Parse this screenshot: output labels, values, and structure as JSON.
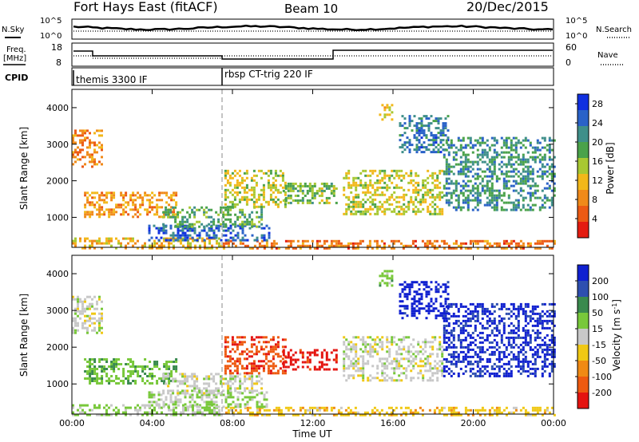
{
  "header": {
    "title": "Fort Hays East (fitACF)",
    "beam": "Beam 10",
    "date": "20/Dec/2015"
  },
  "top_panels": {
    "nsky_label": "N.Sky",
    "nsky_ticks": [
      "10^5",
      "10^0"
    ],
    "nsearch_label": "N.Search",
    "nsearch_ticks": [
      "10^5",
      "10^0"
    ],
    "freq_label_1": "Freq.",
    "freq_label_2": "[MHz]",
    "freq_ticks": [
      "18",
      "8"
    ],
    "nave_label": "Nave",
    "nave_ticks": [
      "60",
      "0"
    ],
    "cpid_label": "CPID",
    "cpid_segments": [
      "themis 3300 IF",
      "rbsp CT-trig 220 IF"
    ]
  },
  "chart_data": [
    {
      "type": "heatmap",
      "title": "",
      "xlabel": "",
      "ylabel": "Slant Range [km]",
      "x_ticks": [
        "00:00",
        "04:00",
        "08:00",
        "12:00",
        "16:00",
        "20:00",
        "00:00"
      ],
      "xlim_hours": [
        0,
        24
      ],
      "ylim_km": [
        180,
        4500
      ],
      "y_ticks": [
        1000,
        2000,
        3000,
        4000
      ],
      "colorbar_label": "Power [dB]",
      "colorbar_ticks": [
        4,
        8,
        12,
        16,
        20,
        24,
        28
      ],
      "colorbar_range": [
        0,
        30
      ],
      "colorbar_colors": [
        "#1030e0",
        "#2a62c8",
        "#3f8f8a",
        "#4aa24a",
        "#a8c832",
        "#f2b81a",
        "#f08a1a",
        "#ec5a14",
        "#e41c10"
      ],
      "grid": false,
      "regions": [
        {
          "x": [
            0.0,
            7.4
          ],
          "y": [
            180,
            450
          ],
          "v": 11
        },
        {
          "x": [
            7.4,
            24.0
          ],
          "y": [
            180,
            380
          ],
          "v": 7
        },
        {
          "x": [
            3.8,
            9.8
          ],
          "y": [
            350,
            800
          ],
          "v": 25
        },
        {
          "x": [
            0.6,
            5.2
          ],
          "y": [
            1000,
            1700
          ],
          "v": 9
        },
        {
          "x": [
            4.5,
            9.5
          ],
          "y": [
            750,
            1300
          ],
          "v": 18
        },
        {
          "x": [
            7.6,
            10.6
          ],
          "y": [
            1300,
            2300
          ],
          "v": 14
        },
        {
          "x": [
            10.5,
            13.2
          ],
          "y": [
            1400,
            1950
          ],
          "v": 17
        },
        {
          "x": [
            13.5,
            18.5
          ],
          "y": [
            1100,
            2300
          ],
          "v": 14
        },
        {
          "x": [
            16.3,
            18.8
          ],
          "y": [
            2800,
            3800
          ],
          "v": 23
        },
        {
          "x": [
            18.5,
            24.0
          ],
          "y": [
            1200,
            3200
          ],
          "v": 21
        },
        {
          "x": [
            0.0,
            1.5
          ],
          "y": [
            2400,
            3400
          ],
          "v": 8
        },
        {
          "x": [
            15.3,
            16.0
          ],
          "y": [
            3700,
            4100
          ],
          "v": 12
        }
      ]
    },
    {
      "type": "heatmap",
      "title": "",
      "xlabel": "Time UT",
      "ylabel": "Slant Range [km]",
      "x_ticks": [
        "00:00",
        "04:00",
        "08:00",
        "12:00",
        "16:00",
        "20:00",
        "00:00"
      ],
      "xlim_hours": [
        0,
        24
      ],
      "ylim_km": [
        180,
        4500
      ],
      "y_ticks": [
        1000,
        2000,
        3000,
        4000
      ],
      "colorbar_label": "Velocity [m s^-1]",
      "colorbar_ticks": [
        200,
        100,
        50,
        15,
        -15,
        -50,
        -100,
        -200
      ],
      "colorbar_range": [
        -250,
        250
      ],
      "colorbar_colors": [
        "#1020d0",
        "#2e4fb0",
        "#3a8a4e",
        "#78c83a",
        "#c8c8c8",
        "#f0c814",
        "#f08a14",
        "#ee5a10",
        "#e41410"
      ],
      "grid": false,
      "regions": [
        {
          "x": [
            0.0,
            7.4
          ],
          "y": [
            180,
            450
          ],
          "v": 40
        },
        {
          "x": [
            7.4,
            24.0
          ],
          "y": [
            180,
            380
          ],
          "v": -60
        },
        {
          "x": [
            3.8,
            9.8
          ],
          "y": [
            350,
            800
          ],
          "v": 30
        },
        {
          "x": [
            0.6,
            5.2
          ],
          "y": [
            1000,
            1700
          ],
          "v": 70
        },
        {
          "x": [
            4.5,
            9.5
          ],
          "y": [
            750,
            1300
          ],
          "v": 0
        },
        {
          "x": [
            7.6,
            10.6
          ],
          "y": [
            1300,
            2300
          ],
          "v": -180
        },
        {
          "x": [
            10.5,
            13.2
          ],
          "y": [
            1400,
            1950
          ],
          "v": -220
        },
        {
          "x": [
            13.5,
            18.5
          ],
          "y": [
            1100,
            2300
          ],
          "v": 0
        },
        {
          "x": [
            16.3,
            18.8
          ],
          "y": [
            2800,
            3800
          ],
          "v": 230
        },
        {
          "x": [
            18.5,
            24.0
          ],
          "y": [
            1200,
            3200
          ],
          "v": 210
        },
        {
          "x": [
            0.0,
            1.5
          ],
          "y": [
            2400,
            3400
          ],
          "v": 0
        },
        {
          "x": [
            15.3,
            16.0
          ],
          "y": [
            3700,
            4100
          ],
          "v": 60
        }
      ]
    }
  ]
}
